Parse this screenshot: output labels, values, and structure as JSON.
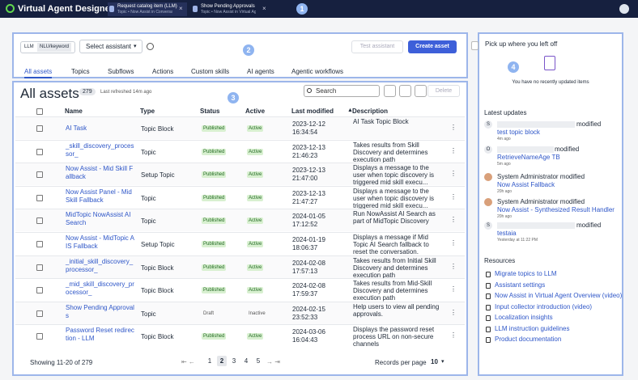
{
  "header": {
    "title": "Virtual Agent Designer",
    "tabs": [
      {
        "title": "Request catalog item (LLM)",
        "subtitle": "Topic • Now Assist in Conversat..."
      },
      {
        "title": "Show Pending Approvals",
        "subtitle": "Topic • Now Assist in Virtual Age..."
      }
    ],
    "annotation": "1"
  },
  "toolbar": {
    "modes": [
      "LLM",
      "NLU/keyword"
    ],
    "select": "Select assistant",
    "test_button": "Test assistant",
    "create_button": "Create asset",
    "tabs": [
      "All assets",
      "Topics",
      "Subflows",
      "Actions",
      "Custom skills",
      "AI agents",
      "Agentic workflows"
    ],
    "annotation": "2"
  },
  "assets": {
    "title": "All assets",
    "count": "279",
    "refreshed": "Last refreshed 14m ago",
    "search": "Search",
    "delete": "Delete",
    "annotation": "3",
    "columns": [
      "Name",
      "Type",
      "Status",
      "Active",
      "Last modified",
      "Description"
    ],
    "rows": [
      {
        "name": "AI Task",
        "type": "Topic Block",
        "status": "Published",
        "active": "Active",
        "date": "2023-12-12",
        "time": "16:34:54",
        "description": "AI Task Topic Block"
      },
      {
        "name": "_skill_discovery_processor_",
        "type": "Topic",
        "status": "Published",
        "active": "Active",
        "date": "2023-12-13",
        "time": "21:46:23",
        "description": "Takes results from Skill Discovery and determines execution path"
      },
      {
        "name": "Now Assist - Mid Skill Fallback",
        "type": "Setup Topic",
        "status": "Published",
        "active": "Active",
        "date": "2023-12-13",
        "time": "21:47:00",
        "description": "Displays a message to the user when topic discovery is triggered mid skill execu..."
      },
      {
        "name": "Now Assist Panel - Mid Skill Fallback",
        "type": "Topic",
        "status": "Published",
        "active": "Active",
        "date": "2023-12-13",
        "time": "21:47:27",
        "description": "Displays a message to the user when topic discovery is triggered mid skill execu..."
      },
      {
        "name": "MidTopic NowAssist AI Search",
        "type": "Topic",
        "status": "Published",
        "active": "Active",
        "date": "2024-01-05",
        "time": "17:12:52",
        "description": "Run NowAssist AI Search as part of MidTopic Discovery"
      },
      {
        "name": "Now Assist - MidTopic AIS Fallback",
        "type": "Setup Topic",
        "status": "Published",
        "active": "Active",
        "date": "2024-01-19",
        "time": "18:06:37",
        "description": "Displays a message if Mid Topic AI Search fallback to reset the conversation."
      },
      {
        "name": "_initial_skill_discovery_processor_",
        "type": "Topic Block",
        "status": "Published",
        "active": "Active",
        "date": "2024-02-08",
        "time": "17:57:13",
        "description": "Takes results from Initial Skill Discovery and determines execution path"
      },
      {
        "name": "_mid_skill_discovery_processor_",
        "type": "Topic Block",
        "status": "Published",
        "active": "Active",
        "date": "2024-02-08",
        "time": "17:59:37",
        "description": "Takes results from Mid-Skill Discovery and determines execution path"
      },
      {
        "name": "Show Pending Approvals",
        "type": "Topic",
        "status": "Draft",
        "active": "Inactive",
        "date": "2024-02-15",
        "time": "23:52:33",
        "description": "Help users to view all pending approvals."
      },
      {
        "name": "Password Reset redirection - LLM",
        "type": "Topic Block",
        "status": "Published",
        "active": "Active",
        "date": "2024-03-06",
        "time": "16:04:43",
        "description": "Displays the password reset process URL on non-secure channels"
      }
    ],
    "showing": "Showing 11-20 of 279",
    "pages": [
      "1",
      "2",
      "3",
      "4",
      "5"
    ],
    "current_page": "2",
    "records_label": "Records per page",
    "records_value": "10"
  },
  "sidebar": {
    "heading": "Pick up where you left off",
    "empty": "You have no recently updated items",
    "annotation": "4",
    "updates_title": "Latest updates",
    "updates": [
      {
        "avatar": "S",
        "action": "modified",
        "link": "test topic block",
        "time": "4m ago"
      },
      {
        "avatar": "O",
        "action": "modified",
        "link": "RetrieveNameAge TB",
        "time": "5m ago"
      },
      {
        "action": "System Administrator modified",
        "link": "Now Assist Fallback",
        "time": "20h ago"
      },
      {
        "action": "System Administrator modified",
        "link": "Now Assist - Synthesized Result Handler",
        "time": "20h ago"
      },
      {
        "avatar": "S",
        "action": "modified",
        "link": "testaia",
        "time": "Yesterday at 11:22 PM"
      }
    ],
    "resources_title": "Resources",
    "resources": [
      "Migrate topics to LLM",
      "Assistant settings",
      "Now Assist in Virtual Agent Overview (video)",
      "Input collector introduction (video)",
      "Localization insights",
      "LLM instruction guidelines",
      "Product documentation"
    ]
  }
}
